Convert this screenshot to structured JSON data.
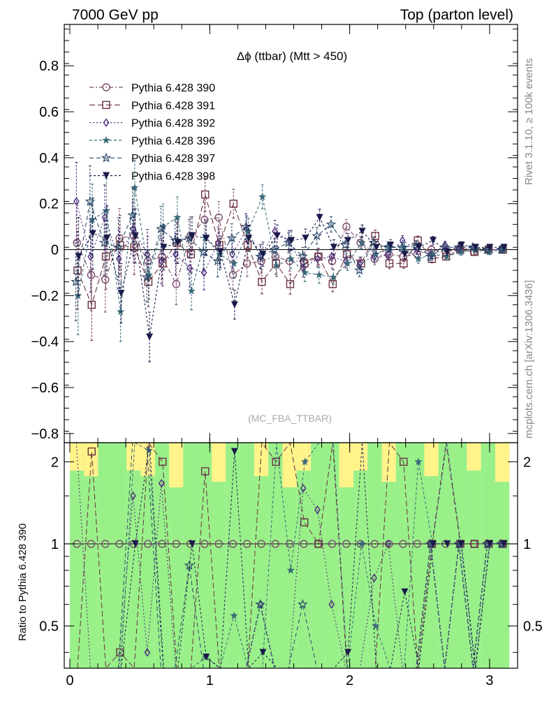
{
  "header": {
    "left": "7000 GeV pp",
    "right": "Top (parton level)"
  },
  "side_text": {
    "rivet": "Rivet 3.1.10, ≥ 100k events",
    "mcplots": "mcplots.cern.ch [arXiv:1306.3436]"
  },
  "chart_data": {
    "type": "scatter",
    "title": "Δϕ (ttbar) (Mtt > 450)",
    "watermark": "(MC_FBA_TTBAR)",
    "xlim": [
      -0.04,
      3.2
    ],
    "ylim": [
      -0.84,
      0.98
    ],
    "x_ticks": [
      "0",
      "1",
      "2",
      "3"
    ],
    "y_ticks": [
      "−0.8",
      "−0.6",
      "−0.4",
      "−0.2",
      "0",
      "0.2",
      "0.4",
      "0.6",
      "0.8"
    ],
    "ratio": {
      "ylabel": "Ratio to Pythia 6.428 390",
      "ylim": [
        0.35,
        2.35
      ],
      "ticks": [
        "0.5",
        "1",
        "2"
      ],
      "reference": "Pythia 6.428 390"
    },
    "legend_position": "top-left",
    "series": [
      {
        "name": "Pythia 6.428 390",
        "marker": "circle-open",
        "color": "#7a4a6a",
        "values": [
          0.03,
          -0.11,
          -0.13,
          0.05,
          0.06,
          -0.05,
          -0.03,
          -0.15,
          0.06,
          0.13,
          0.14,
          -0.11,
          -0.06,
          -0.05,
          -0.03,
          -0.05,
          -0.05,
          -0.03,
          -0.05,
          0.1,
          0.03,
          -0.04,
          -0.02,
          -0.03,
          -0.02,
          0.0,
          -0.01,
          0.0,
          -0.01,
          0.0,
          0.0
        ]
      },
      {
        "name": "Pythia 6.428 391",
        "marker": "square-open",
        "color": "#6a3040",
        "values": [
          -0.09,
          -0.24,
          -0.03,
          0.02,
          0.01,
          -0.14,
          -0.06,
          0.03,
          -0.02,
          0.24,
          0.02,
          0.2,
          0.02,
          -0.14,
          -0.06,
          -0.15,
          -0.06,
          -0.03,
          -0.15,
          -0.02,
          -0.06,
          0.06,
          -0.06,
          -0.06,
          0.04,
          -0.04,
          -0.03,
          0.0,
          -0.01,
          0.0,
          0.0
        ]
      },
      {
        "name": "Pythia 6.428 392",
        "marker": "diamond-open",
        "color": "#4a2a7a",
        "values": [
          0.21,
          -0.03,
          0.14,
          -0.04,
          0.09,
          -0.02,
          -0.05,
          -0.02,
          -0.08,
          -0.1,
          0.03,
          -0.02,
          0.09,
          -0.03,
          0.08,
          0.04,
          -0.08,
          -0.04,
          -0.03,
          -0.05,
          -0.06,
          -0.03,
          -0.02,
          0.04,
          0.0,
          -0.02,
          0.02,
          0.0,
          0.01,
          0.0,
          0.0
        ]
      },
      {
        "name": "Pythia 6.428 396",
        "marker": "star",
        "color": "#3a6a7a",
        "values": [
          -0.2,
          0.13,
          0.17,
          -0.27,
          0.27,
          -0.11,
          0.1,
          0.14,
          -0.18,
          0.05,
          -0.02,
          -0.06,
          0.08,
          0.23,
          -0.07,
          -0.04,
          -0.1,
          -0.11,
          -0.12,
          -0.06,
          0.03,
          -0.02,
          0.01,
          0.01,
          -0.04,
          -0.02,
          -0.03,
          -0.01,
          0.0,
          -0.01,
          0.0
        ]
      },
      {
        "name": "Pythia 6.428 397",
        "marker": "star-open",
        "color": "#2a4a6a",
        "values": [
          -0.14,
          0.21,
          0.03,
          0.01,
          0.15,
          -0.12,
          0.09,
          0.04,
          0.05,
          -0.01,
          -0.05,
          0.05,
          0.1,
          -0.03,
          0.0,
          0.03,
          -0.03,
          0.06,
          0.11,
          0.02,
          -0.09,
          0.03,
          0.01,
          0.01,
          0.02,
          -0.03,
          0.01,
          0.01,
          0.01,
          0.0,
          0.0
        ]
      },
      {
        "name": "Pythia 6.428 398",
        "marker": "triangle-down",
        "color": "#1a1a4a",
        "values": [
          -0.03,
          0.07,
          0.05,
          -0.19,
          0.06,
          -0.38,
          0.01,
          0.03,
          0.06,
          0.05,
          -0.01,
          -0.24,
          0.05,
          -0.02,
          0.06,
          0.04,
          0.05,
          0.14,
          0.01,
          0.04,
          0.08,
          0.01,
          0.02,
          -0.02,
          0.01,
          0.04,
          -0.01,
          0.02,
          0.01,
          0.01,
          0.01
        ]
      }
    ]
  }
}
